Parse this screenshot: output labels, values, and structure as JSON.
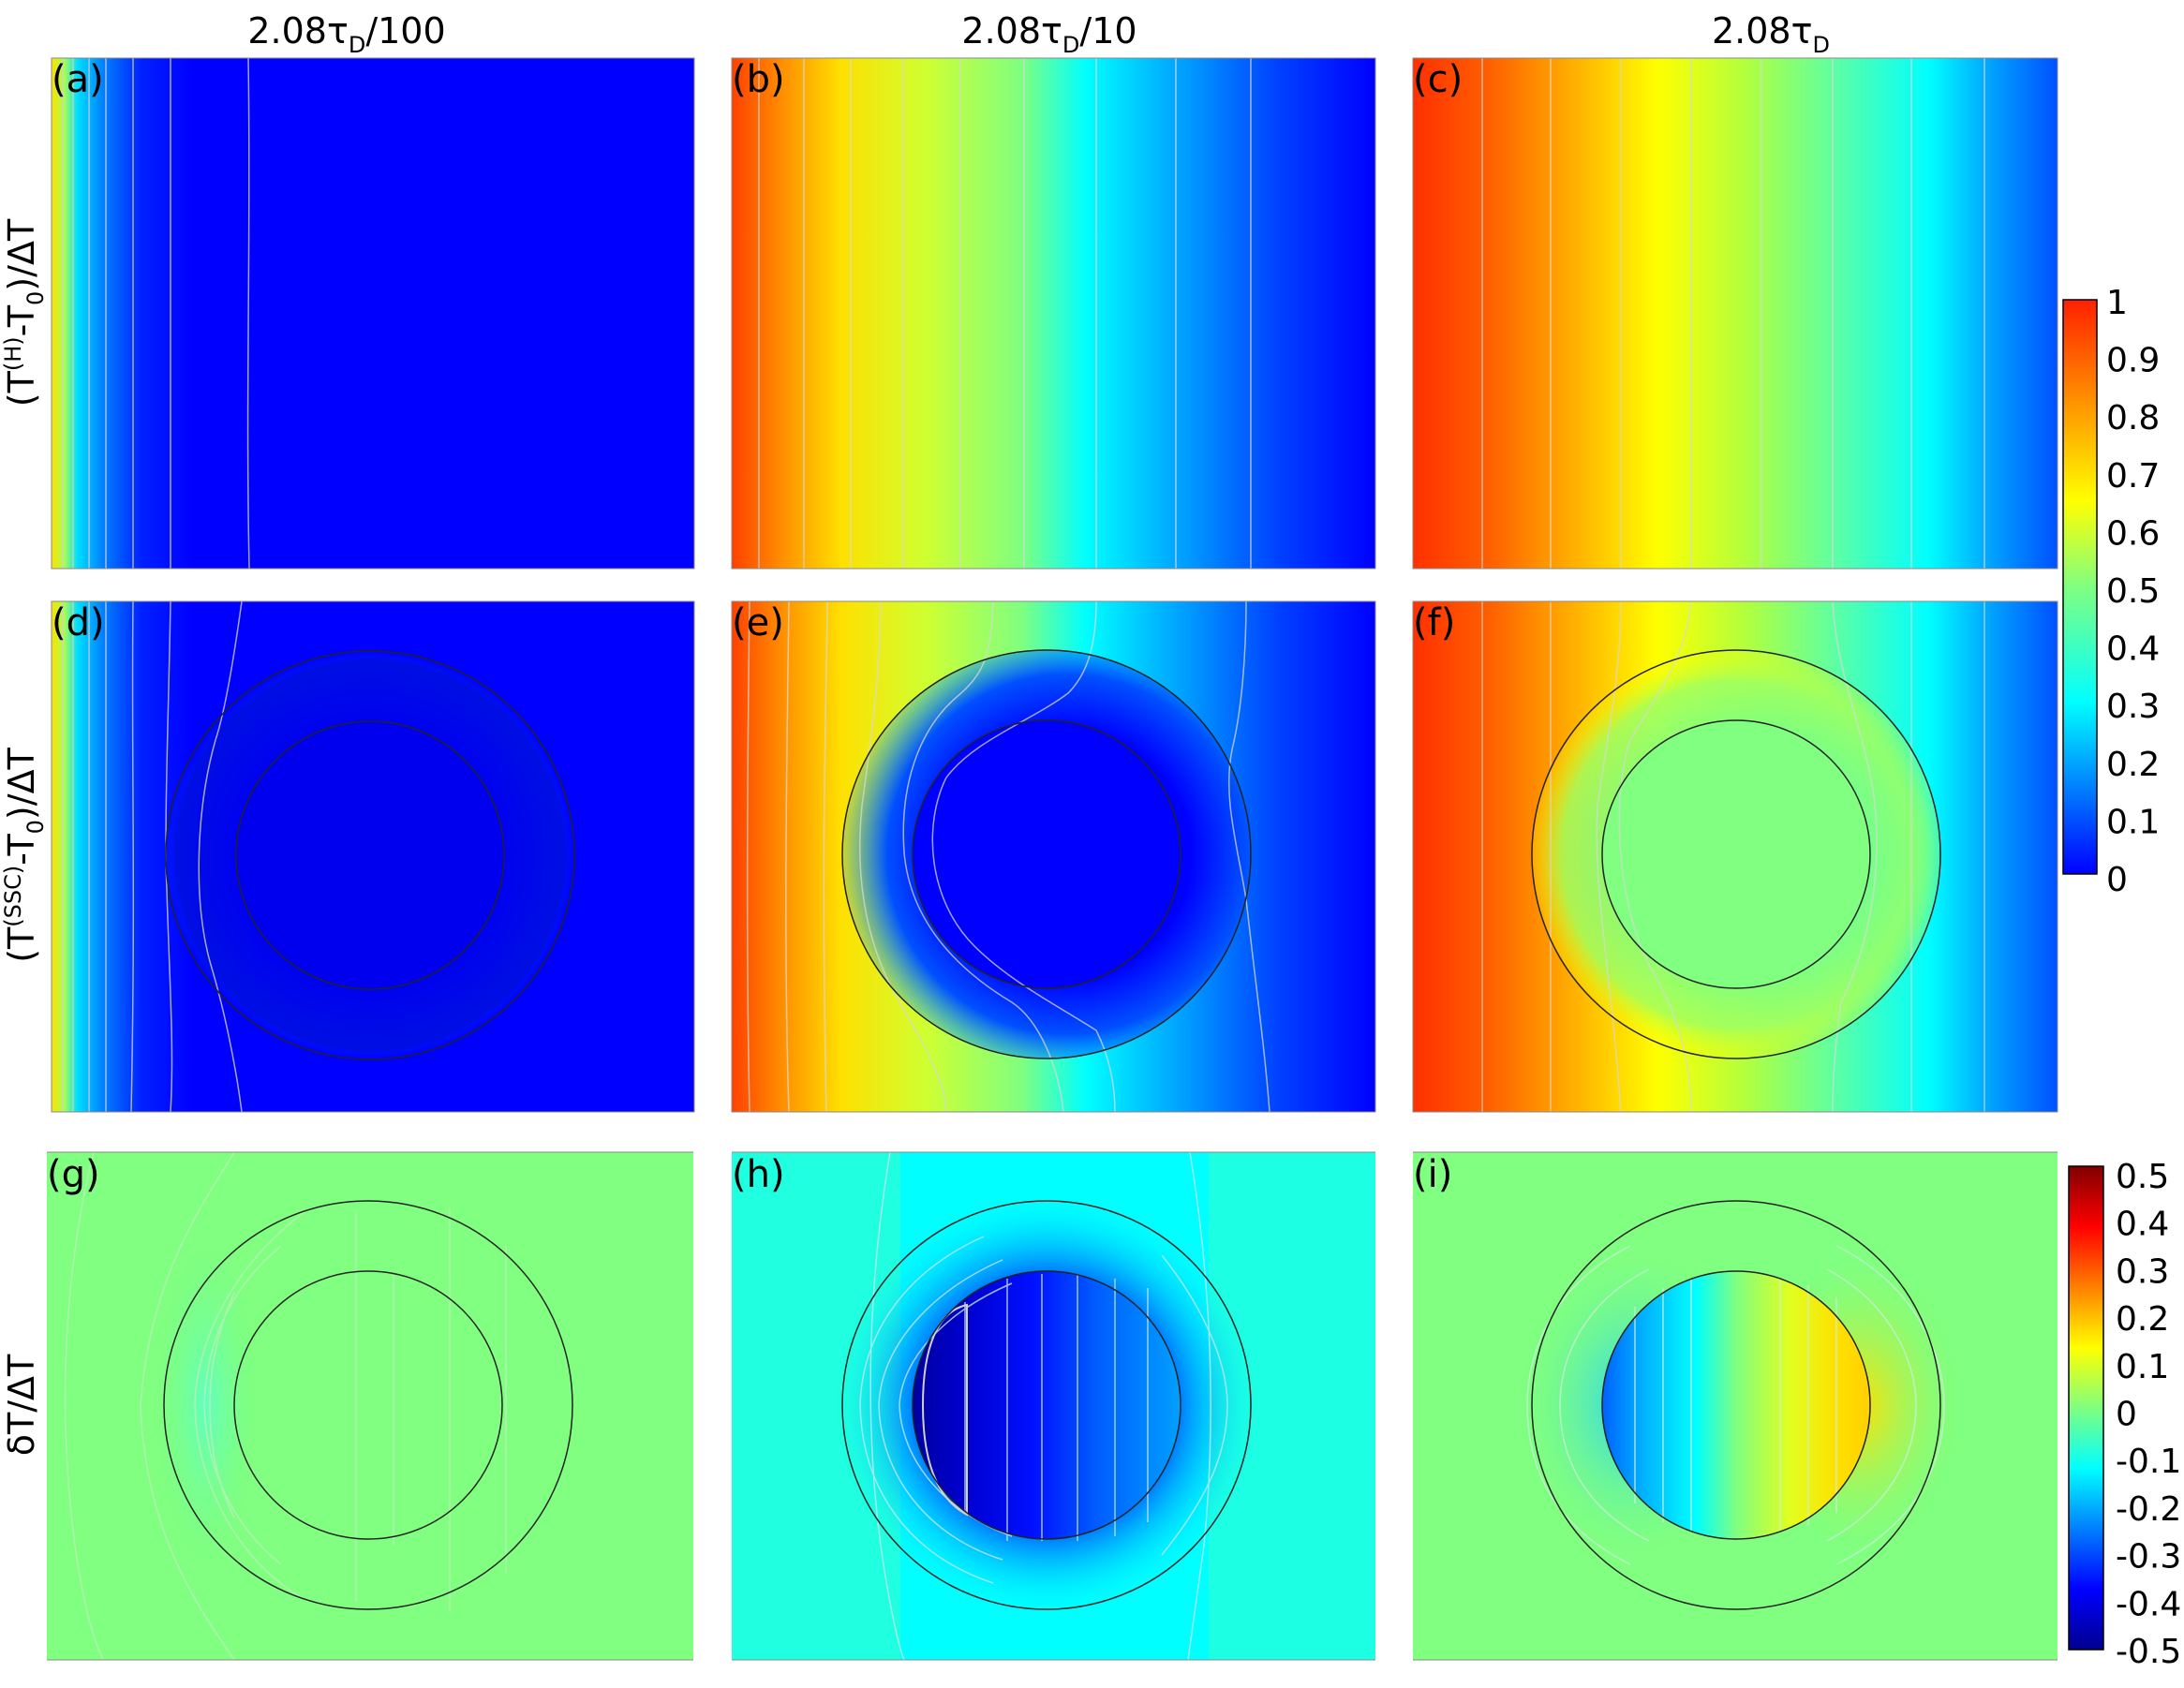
{
  "columns": [
    {
      "base": "2.08τ",
      "sub": "D",
      "suffix": "/100"
    },
    {
      "base": "2.08τ",
      "sub": "D",
      "suffix": "/10"
    },
    {
      "base": "2.08τ",
      "sub": "D",
      "suffix": ""
    }
  ],
  "rows": [
    {
      "parts": [
        {
          "t": "(T"
        },
        {
          "t": "(H)",
          "sup": true
        },
        {
          "t": "-T"
        },
        {
          "t": "0",
          "sub": true
        },
        {
          "t": ")/ΔT"
        }
      ]
    },
    {
      "parts": [
        {
          "t": "(T"
        },
        {
          "t": "(SSC)",
          "sup": true
        },
        {
          "t": "-T"
        },
        {
          "t": "0",
          "sub": true
        },
        {
          "t": ")/ΔT"
        }
      ]
    },
    {
      "parts": [
        {
          "t": "δT/ΔT"
        }
      ]
    }
  ],
  "panels": [
    {
      "label": "(a)",
      "row": 0,
      "col": 0
    },
    {
      "label": "(b)",
      "row": 0,
      "col": 1
    },
    {
      "label": "(c)",
      "row": 0,
      "col": 2
    },
    {
      "label": "(d)",
      "row": 1,
      "col": 0
    },
    {
      "label": "(e)",
      "row": 1,
      "col": 1
    },
    {
      "label": "(f)",
      "row": 1,
      "col": 2
    },
    {
      "label": "(g)",
      "row": 2,
      "col": 0
    },
    {
      "label": "(h)",
      "row": 2,
      "col": 1
    },
    {
      "label": "(i)",
      "row": 2,
      "col": 2
    }
  ],
  "colorbars": [
    {
      "name": "temperature-colorbar",
      "range": [
        0,
        1
      ],
      "ticks": [
        "1",
        "0.9",
        "0.8",
        "0.7",
        "0.6",
        "0.5",
        "0.4",
        "0.3",
        "0.2",
        "0.1",
        "0"
      ]
    },
    {
      "name": "deviation-colorbar",
      "range": [
        -0.5,
        0.5
      ],
      "ticks": [
        "0.5",
        "0.4",
        "0.3",
        "0.2",
        "0.1",
        "0",
        "-0.1",
        "-0.2",
        "-0.3",
        "-0.4",
        "-0.5"
      ]
    }
  ],
  "colormap": [
    "#00008f",
    "#0000ff",
    "#00ffff",
    "#80ff80",
    "#ffff00",
    "#ff0000",
    "#800000"
  ]
}
